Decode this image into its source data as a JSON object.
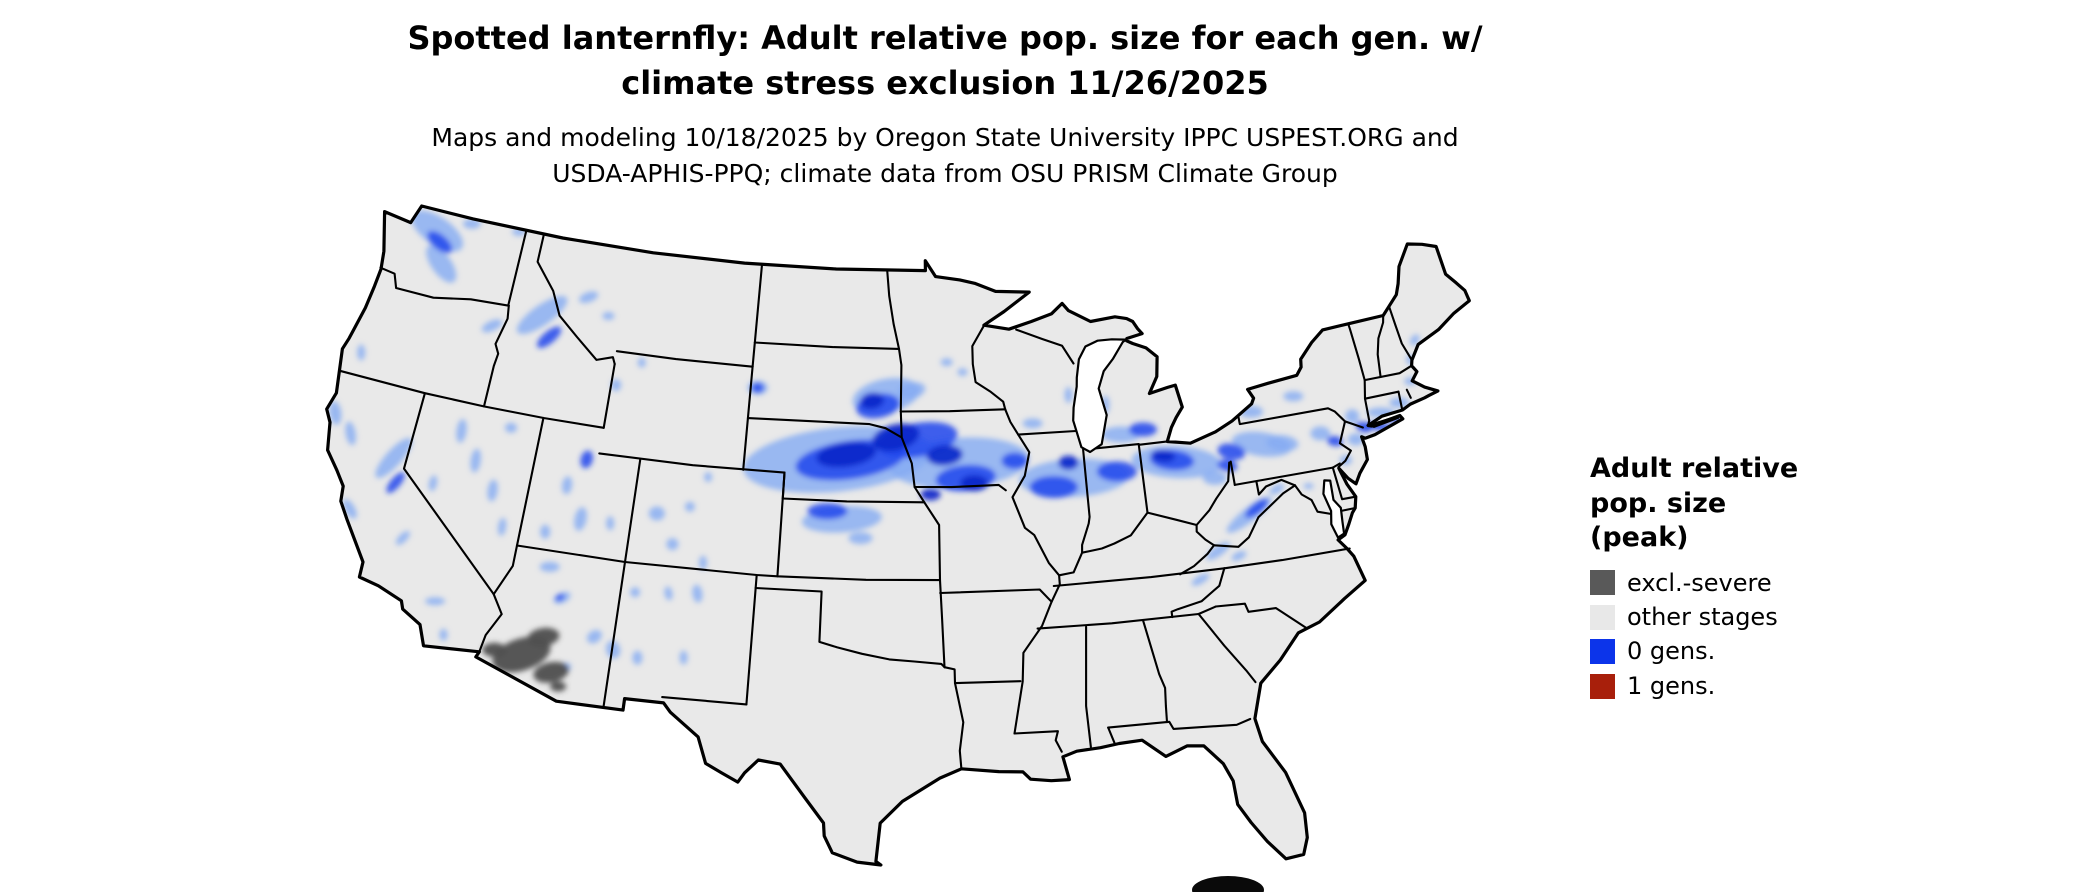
{
  "title": {
    "line1": "Spotted lanternfly: Adult relative pop. size for each gen. w/",
    "line2": "climate stress exclusion 11/26/2025"
  },
  "subtitle": {
    "line1": "Maps and modeling 10/18/2025 by Oregon State University IPPC USPEST.ORG and",
    "line2": "USDA-APHIS-PPQ; climate data from OSU PRISM Climate Group"
  },
  "legend": {
    "title_line1": "Adult relative",
    "title_line2": "pop. size",
    "title_line3": "(peak)",
    "items": [
      {
        "label": "excl.-severe",
        "color": "#595959"
      },
      {
        "label": "other stages",
        "color": "#e8e8e8"
      },
      {
        "label": "0 gens.",
        "color": "#0c34ea"
      },
      {
        "label": "1 gens.",
        "color": "#a81f0b"
      }
    ]
  },
  "map": {
    "base_fill": "#e9e9e9",
    "border_color": "#000000",
    "water_fill": "#ffffff",
    "overlay": {
      "blue_light": "#85abf3",
      "blue_mid": "#1e47ec",
      "blue_dark": "#0826c9",
      "gray_severe": "#505050"
    }
  }
}
